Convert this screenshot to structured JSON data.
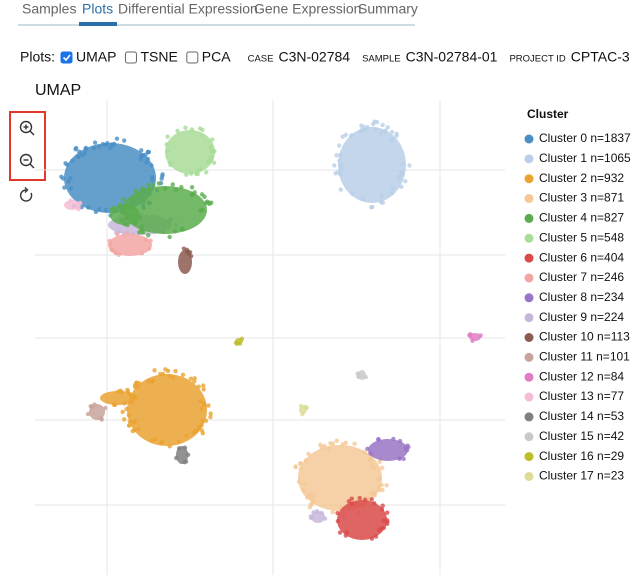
{
  "tabs": {
    "items": [
      "Samples",
      "Plots",
      "Differential Expression",
      "Gene Expression",
      "Summary"
    ],
    "active": 1
  },
  "controls": {
    "label": "Plots:",
    "options": [
      {
        "label": "UMAP",
        "checked": true
      },
      {
        "label": "TSNE",
        "checked": false
      },
      {
        "label": "PCA",
        "checked": false
      }
    ],
    "meta": [
      {
        "key": "CASE",
        "value": "C3N-02784"
      },
      {
        "key": "SAMPLE",
        "value": "C3N-02784-01"
      },
      {
        "key": "PROJECT ID",
        "value": "CPTAC-3"
      }
    ]
  },
  "plot": {
    "title": "UMAP"
  },
  "legend": {
    "title": "Cluster",
    "items": [
      {
        "label": "Cluster 0 n=1837",
        "color": "#4a8fc4"
      },
      {
        "label": "Cluster 1 n=1065",
        "color": "#b9cfe8"
      },
      {
        "label": "Cluster 2 n=932",
        "color": "#eaa232"
      },
      {
        "label": "Cluster 3 n=871",
        "color": "#f5c896"
      },
      {
        "label": "Cluster 4 n=827",
        "color": "#5aad4e"
      },
      {
        "label": "Cluster 5 n=548",
        "color": "#a8dc98"
      },
      {
        "label": "Cluster 6 n=404",
        "color": "#d94a4a"
      },
      {
        "label": "Cluster 7 n=246",
        "color": "#f2a6a3"
      },
      {
        "label": "Cluster 8 n=234",
        "color": "#9a74c6"
      },
      {
        "label": "Cluster 9 n=224",
        "color": "#c8b6dc"
      },
      {
        "label": "Cluster 10 n=113",
        "color": "#8c5b50"
      },
      {
        "label": "Cluster 11 n=101",
        "color": "#c7a39a"
      },
      {
        "label": "Cluster 12 n=84",
        "color": "#e07cc4"
      },
      {
        "label": "Cluster 13 n=77",
        "color": "#f4bcd6"
      },
      {
        "label": "Cluster 14 n=53",
        "color": "#7f7f7f"
      },
      {
        "label": "Cluster 15 n=42",
        "color": "#c9c9c9"
      },
      {
        "label": "Cluster 16 n=29",
        "color": "#bdbd2a"
      },
      {
        "label": "Cluster 17 n=23",
        "color": "#dcdc98"
      }
    ]
  }
}
